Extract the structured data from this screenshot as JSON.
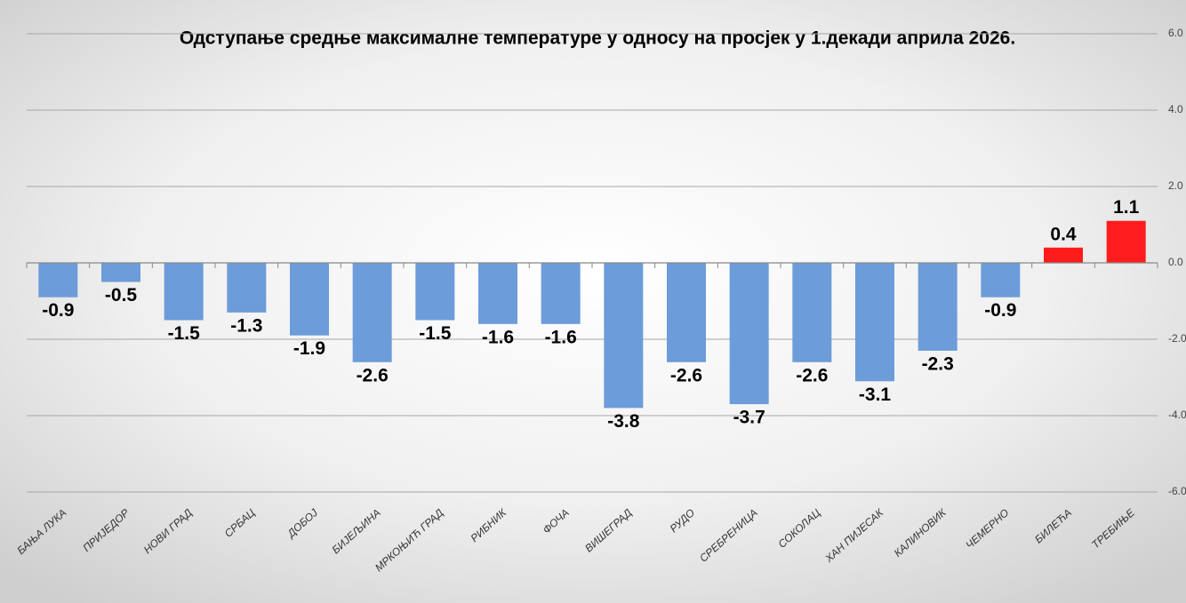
{
  "chart_data": {
    "type": "bar",
    "title": "Одступање средње максималне температуре у односу на просјек у 1.декади априла 2026.",
    "categories": [
      "БАЊА ЛУКА",
      "ПРИЈЕДОР",
      "НОВИ ГРАД",
      "СРБАЦ",
      "ДОБОЈ",
      "БИЈЕЉИНА",
      "МРКОЊИЋ ГРАД",
      "РИБНИК",
      "ФОЧА",
      "ВИШЕГРАД",
      "РУДО",
      "СРЕБРЕНИЦА",
      "СОКОЛАЦ",
      "ХАН ПИЈЕСАК",
      "КАЛИНОВИК",
      "ЧЕМЕРНО",
      "БИЛЕЋА",
      "ТРЕБИЊЕ"
    ],
    "values": [
      -0.9,
      -0.5,
      -1.5,
      -1.3,
      -1.9,
      -2.6,
      -1.5,
      -1.6,
      -1.6,
      -3.8,
      -2.6,
      -3.7,
      -2.6,
      -3.1,
      -2.3,
      -0.9,
      0.4,
      1.1
    ],
    "color": "#6c9cd9",
    "positive_color": "#ff1c1c",
    "ylim": [
      -6,
      6
    ],
    "yticks": [
      {
        "value": -6,
        "label": "-6.0"
      },
      {
        "value": -4,
        "label": "-4.0"
      },
      {
        "value": -2,
        "label": "-2.0"
      },
      {
        "value": 0,
        "label": "0.0"
      },
      {
        "value": 2,
        "label": "2.0"
      },
      {
        "value": 4,
        "label": "4.0"
      },
      {
        "value": 6,
        "label": "6.0"
      }
    ],
    "grid": true
  }
}
